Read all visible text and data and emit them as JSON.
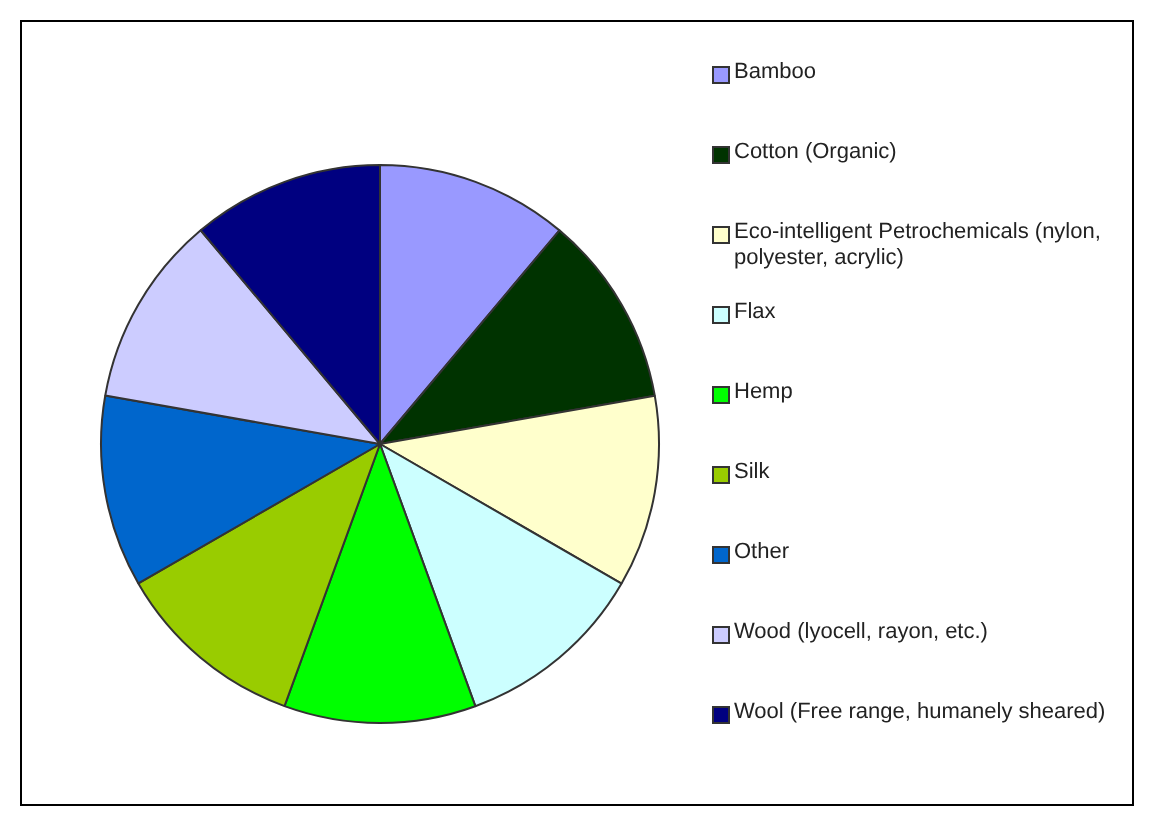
{
  "chart_data": {
    "type": "pie",
    "categories": [
      "Bamboo",
      "Cotton (Organic)",
      "Eco-intelligent Petrochemicals (nylon, polyester, acrylic)",
      "Flax",
      "Hemp",
      "Silk",
      "Other",
      "Wood (lyocell, rayon, etc.)",
      "Wool (Free range, humanely sheared)"
    ],
    "values": [
      11.12,
      11.11,
      11.11,
      11.11,
      11.11,
      11.11,
      11.11,
      11.11,
      11.11
    ],
    "colors": [
      "#9999ff",
      "#003300",
      "#ffffcc",
      "#ccffff",
      "#00ff00",
      "#99cc00",
      "#0066cc",
      "#ccccff",
      "#000080"
    ],
    "legend": "right"
  }
}
